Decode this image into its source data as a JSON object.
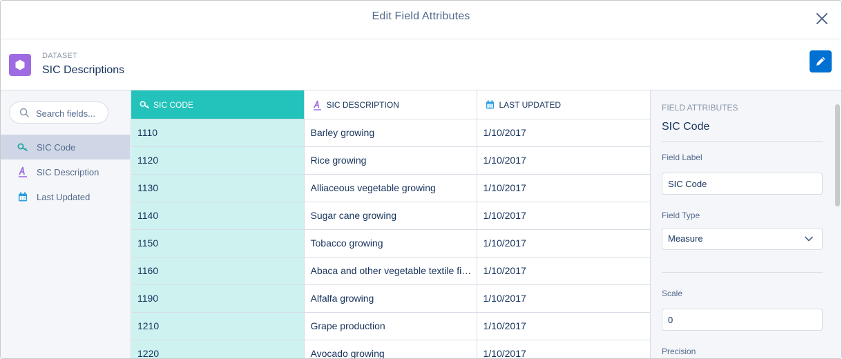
{
  "modal": {
    "title": "Edit Field Attributes"
  },
  "dataset": {
    "eyebrow": "DATASET",
    "name": "SIC Descriptions"
  },
  "sidebar": {
    "search_placeholder": "Search fields...",
    "items": [
      {
        "label": "SIC Code",
        "icon": "key-field-icon",
        "active": true
      },
      {
        "label": "SIC Description",
        "icon": "text-field-icon",
        "active": false
      },
      {
        "label": "Last Updated",
        "icon": "calendar-icon",
        "active": false
      }
    ]
  },
  "table": {
    "columns": [
      "SIC CODE",
      "SIC DESCRIPTION",
      "LAST UPDATED"
    ],
    "rows": [
      [
        "1110",
        "Barley growing",
        "1/10/2017"
      ],
      [
        "1120",
        "Rice growing",
        "1/10/2017"
      ],
      [
        "1130",
        "Alliaceous vegetable growing",
        "1/10/2017"
      ],
      [
        "1140",
        "Sugar cane growing",
        "1/10/2017"
      ],
      [
        "1150",
        "Tobacco growing",
        "1/10/2017"
      ],
      [
        "1160",
        "Abaca and other vegetable textile fiber growing",
        "1/10/2017"
      ],
      [
        "1190",
        "Alfalfa growing",
        "1/10/2017"
      ],
      [
        "1210",
        "Grape production",
        "1/10/2017"
      ],
      [
        "1220",
        "Avocado growing",
        "1/10/2017"
      ]
    ]
  },
  "panel": {
    "eyebrow": "FIELD ATTRIBUTES",
    "title": "SIC Code",
    "field_label_label": "Field Label",
    "field_label_value": "SIC Code",
    "field_type_label": "Field Type",
    "field_type_value": "Measure",
    "scale_label": "Scale",
    "scale_value": "0",
    "precision_label": "Precision"
  },
  "colors": {
    "accent": "#23c3bb",
    "accent_light": "#cdf2f0",
    "brand": "#0070d2",
    "dataset_icon": "#9f6be2"
  }
}
